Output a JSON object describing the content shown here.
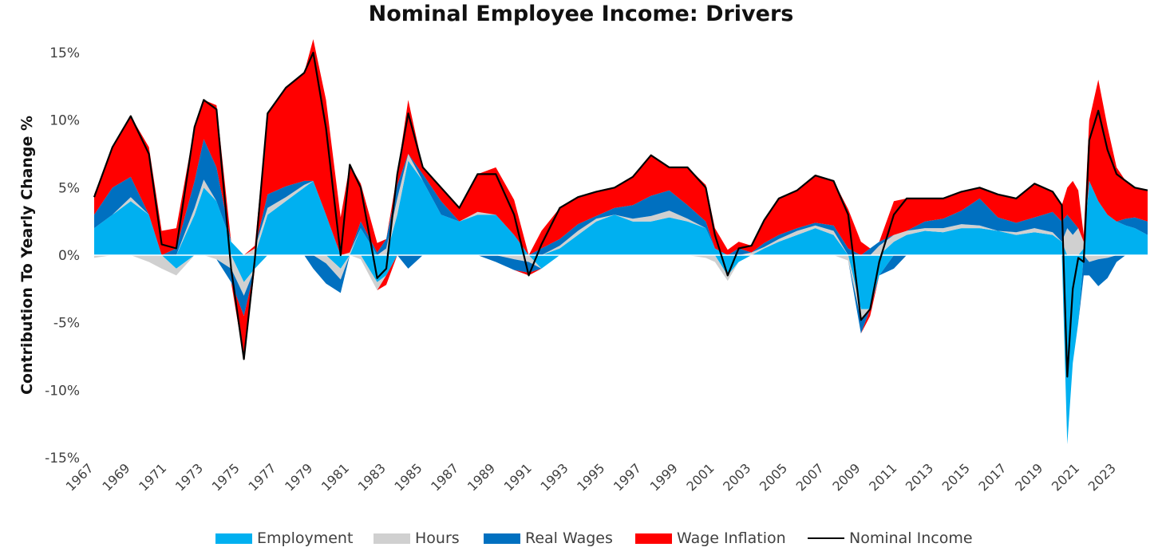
{
  "chart_data": {
    "type": "area",
    "title": "Nominal Employee Income: Drivers",
    "ylabel": "Contribution To Yearly Change %",
    "xlabel": "",
    "ylim": [
      -15,
      15
    ],
    "xlim": [
      1967,
      2024.7
    ],
    "y_ticks": [
      "15%",
      "10%",
      "5%",
      "0%",
      "-5%",
      "-10%",
      "-15%"
    ],
    "y_tick_values": [
      15,
      10,
      5,
      0,
      -5,
      -10,
      -15
    ],
    "x_ticks": [
      "1967",
      "1969",
      "1971",
      "1973",
      "1975",
      "1977",
      "1979",
      "1981",
      "1983",
      "1985",
      "1987",
      "1989",
      "1991",
      "1993",
      "1995",
      "1997",
      "1999",
      "2001",
      "2003",
      "2005",
      "2007",
      "2009",
      "2011",
      "2013",
      "2015",
      "2017",
      "2019",
      "2021",
      "2023"
    ],
    "legend_position": "bottom",
    "grid": false,
    "colors": {
      "Employment": "#00b0f0",
      "Hours": "#d0d0d0",
      "Real Wages": "#0070c0",
      "Wage Inflation": "#ff0000",
      "Nominal Income": "#000000"
    },
    "x": [
      1967.0,
      1968.0,
      1969.0,
      1970.0,
      1970.7,
      1971.5,
      1972.5,
      1973.0,
      1973.7,
      1974.5,
      1975.2,
      1975.8,
      1976.5,
      1977.5,
      1978.5,
      1979.0,
      1979.7,
      1980.5,
      1981.0,
      1981.6,
      1982.5,
      1983.0,
      1983.6,
      1984.2,
      1985.0,
      1986.0,
      1987.0,
      1988.0,
      1989.0,
      1990.0,
      1990.8,
      1991.5,
      1992.5,
      1993.5,
      1994.5,
      1995.5,
      1996.5,
      1997.5,
      1998.5,
      1999.5,
      2000.5,
      2001.0,
      2001.7,
      2002.3,
      2003.0,
      2003.7,
      2004.5,
      2005.5,
      2006.5,
      2007.5,
      2008.3,
      2009.0,
      2009.5,
      2010.0,
      2010.8,
      2011.5,
      2012.5,
      2013.5,
      2014.5,
      2015.5,
      2016.5,
      2017.5,
      2018.5,
      2019.5,
      2020.0,
      2020.3,
      2020.6,
      2020.9,
      2021.2,
      2021.5,
      2022.0,
      2022.5,
      2023.0,
      2023.5,
      2024.0,
      2024.7
    ],
    "series": [
      {
        "name": "Employment",
        "values": [
          2.0,
          3.0,
          4.0,
          3.0,
          0.0,
          -1.0,
          3.0,
          5.0,
          4.0,
          1.0,
          -2.0,
          -1.0,
          3.0,
          4.0,
          5.0,
          5.5,
          3.0,
          -1.0,
          0.0,
          2.0,
          -2.0,
          -1.5,
          3.0,
          7.0,
          5.5,
          3.0,
          2.5,
          3.0,
          3.0,
          1.5,
          0.0,
          -1.0,
          0.5,
          1.5,
          2.5,
          3.0,
          2.5,
          2.5,
          2.8,
          2.5,
          2.0,
          0.5,
          -1.5,
          -0.5,
          0.0,
          0.5,
          1.0,
          1.5,
          2.0,
          1.5,
          0.0,
          -4.0,
          -4.0,
          -1.5,
          1.0,
          1.5,
          1.8,
          1.7,
          2.0,
          2.0,
          1.8,
          1.5,
          1.7,
          1.5,
          1.0,
          -14.0,
          -8.0,
          -5.0,
          0.5,
          5.5,
          4.0,
          3.0,
          2.5,
          2.2,
          2.0,
          1.5
        ]
      },
      {
        "name": "Hours",
        "values": [
          -0.2,
          0.0,
          0.3,
          -0.5,
          -1.0,
          -0.5,
          0.5,
          0.6,
          -0.3,
          -1.0,
          -1.0,
          0.5,
          0.5,
          0.3,
          0.2,
          0.0,
          -0.6,
          -0.8,
          0.2,
          -0.3,
          -0.6,
          0.5,
          1.2,
          0.5,
          0.0,
          0.0,
          0.0,
          0.2,
          0.0,
          -0.3,
          -0.5,
          0.0,
          0.2,
          0.3,
          0.2,
          0.0,
          0.2,
          0.4,
          0.5,
          0.2,
          -0.2,
          -0.5,
          -0.4,
          0.0,
          0.2,
          0.1,
          0.2,
          0.3,
          0.2,
          0.3,
          -0.4,
          -0.8,
          0.0,
          0.7,
          0.5,
          0.3,
          0.2,
          0.3,
          0.3,
          0.2,
          0.0,
          0.2,
          0.3,
          0.2,
          0.0,
          2.0,
          1.5,
          2.0,
          0.5,
          -0.5,
          -0.3,
          -0.2,
          0.0,
          0.0,
          0.0,
          0.0
        ]
      },
      {
        "name": "Real Wages",
        "values": [
          1.0,
          2.0,
          1.5,
          0.0,
          0.0,
          0.5,
          2.0,
          3.0,
          2.5,
          -1.0,
          -1.5,
          0.0,
          1.0,
          0.8,
          0.3,
          -1.0,
          -1.5,
          -1.0,
          0.0,
          0.5,
          0.2,
          0.7,
          1.0,
          -1.0,
          0.5,
          1.0,
          0.0,
          0.0,
          -0.5,
          -0.8,
          -0.8,
          0.5,
          0.5,
          0.5,
          0.2,
          0.5,
          1.0,
          1.5,
          1.5,
          1.0,
          0.5,
          0.0,
          0.0,
          0.5,
          0.0,
          0.3,
          0.3,
          0.2,
          0.2,
          0.4,
          0.5,
          -1.0,
          0.5,
          0.3,
          -1.0,
          0.0,
          0.5,
          0.7,
          1.0,
          2.0,
          1.0,
          0.7,
          0.8,
          1.5,
          1.5,
          1.0,
          1.0,
          0.0,
          -1.5,
          -1.0,
          -2.0,
          -1.5,
          -0.5,
          0.5,
          0.8,
          1.0
        ]
      },
      {
        "name": "Wage Inflation",
        "values": [
          1.5,
          3.0,
          4.5,
          5.0,
          1.8,
          1.5,
          4.0,
          2.9,
          4.6,
          0.0,
          -3.2,
          0.2,
          6.0,
          7.3,
          8.0,
          10.5,
          8.5,
          2.8,
          6.5,
          2.8,
          0.7,
          -0.7,
          0.8,
          4.0,
          0.5,
          1.0,
          1.0,
          2.8,
          3.5,
          2.6,
          -0.2,
          1.3,
          2.3,
          2.0,
          1.8,
          1.5,
          2.1,
          3.0,
          1.7,
          2.8,
          2.7,
          1.5,
          0.4,
          0.5,
          0.5,
          1.7,
          2.7,
          2.8,
          3.5,
          3.3,
          2.9,
          1.0,
          -0.5,
          0.0,
          2.5,
          2.4,
          1.7,
          1.5,
          1.4,
          0.8,
          1.7,
          1.8,
          2.5,
          1.5,
          1.2,
          2.0,
          3.0,
          2.8,
          0.5,
          4.5,
          9.0,
          6.5,
          4.0,
          2.8,
          2.2,
          2.3
        ]
      },
      {
        "name": "Nominal Income",
        "values": [
          4.3,
          8.0,
          10.3,
          7.5,
          0.8,
          0.5,
          9.5,
          11.5,
          10.8,
          -1.0,
          -7.7,
          -0.3,
          10.5,
          12.4,
          13.5,
          15.0,
          9.4,
          0.0,
          6.7,
          5.0,
          -1.7,
          -1.0,
          6.0,
          10.5,
          6.5,
          5.0,
          3.5,
          6.0,
          6.0,
          3.0,
          -1.5,
          0.8,
          3.5,
          4.3,
          4.7,
          5.0,
          5.8,
          7.4,
          6.5,
          6.5,
          5.0,
          1.5,
          -1.5,
          0.5,
          0.7,
          2.6,
          4.2,
          4.8,
          5.9,
          5.5,
          3.0,
          -4.8,
          -4.0,
          -0.5,
          3.0,
          4.2,
          4.2,
          4.2,
          4.7,
          5.0,
          4.5,
          4.2,
          5.3,
          4.7,
          3.7,
          -9.0,
          -2.5,
          -0.2,
          -0.5,
          8.5,
          10.7,
          7.8,
          6.0,
          5.5,
          5.0,
          4.8
        ]
      }
    ]
  },
  "legend": {
    "items": [
      {
        "label": "Employment",
        "color": "#00b0f0",
        "kind": "area"
      },
      {
        "label": "Hours",
        "color": "#d0d0d0",
        "kind": "area"
      },
      {
        "label": "Real Wages",
        "color": "#0070c0",
        "kind": "area"
      },
      {
        "label": "Wage Inflation",
        "color": "#ff0000",
        "kind": "area"
      },
      {
        "label": "Nominal Income",
        "color": "#000000",
        "kind": "line"
      }
    ]
  }
}
